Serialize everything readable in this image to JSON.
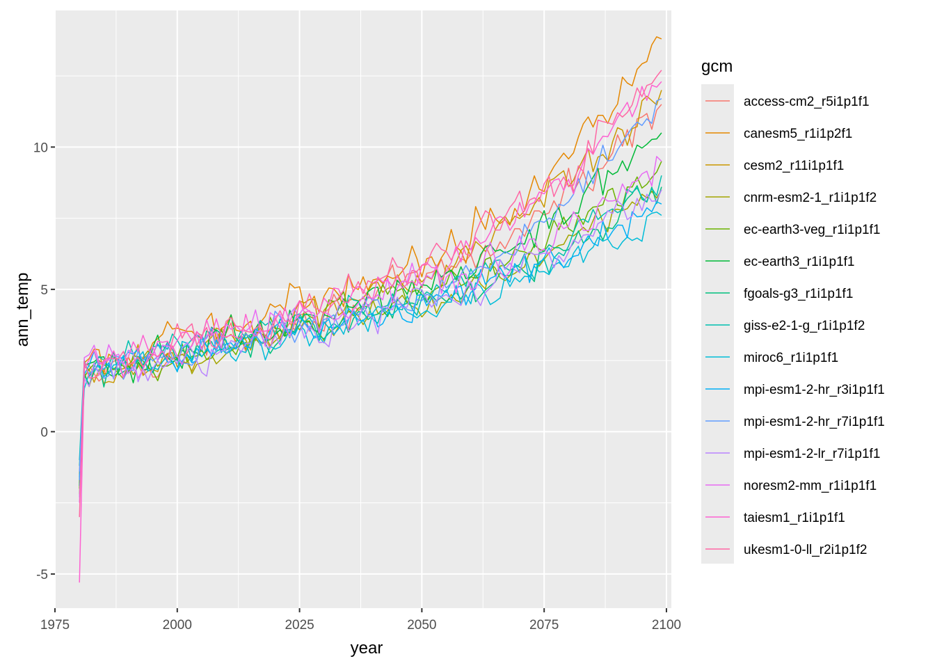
{
  "chart_data": {
    "type": "line",
    "xlabel": "year",
    "ylabel": "ann_temp",
    "xlim": [
      1975,
      2101
    ],
    "ylim": [
      -6.2,
      14.8
    ],
    "x_ticks": [
      {
        "value": 1975,
        "label": "1975"
      },
      {
        "value": 2000,
        "label": "2000"
      },
      {
        "value": 2025,
        "label": "2025"
      },
      {
        "value": 2050,
        "label": "2050"
      },
      {
        "value": 2075,
        "label": "2075"
      },
      {
        "value": 2100,
        "label": "2100"
      }
    ],
    "y_ticks": [
      {
        "value": -5,
        "label": "-5"
      },
      {
        "value": 0,
        "label": "0"
      },
      {
        "value": 5,
        "label": "5"
      },
      {
        "value": 10,
        "label": "10"
      }
    ],
    "grid": true,
    "panel_background": "#ebebeb",
    "legend": {
      "title": "gcm",
      "position": "right"
    },
    "years": {
      "start": 1980,
      "end": 2099
    },
    "series": [
      {
        "name": "access-cm2_r5i1p1f1",
        "color": "#F8766D",
        "start": -2.0,
        "level1985": 2.0,
        "level2050": 5.2,
        "level2099": 11.5,
        "noise": 0.55
      },
      {
        "name": "canesm5_r1i1p2f1",
        "color": "#E58700",
        "start": -1.5,
        "level1985": 2.3,
        "level2050": 6.0,
        "level2099": 13.8,
        "noise": 0.6
      },
      {
        "name": "cesm2_r11i1p1f1",
        "color": "#C99800",
        "start": -1.8,
        "level1985": 1.8,
        "level2050": 5.5,
        "level2099": 12.0,
        "noise": 0.6
      },
      {
        "name": "cnrm-esm2-1_r1i1p1f2",
        "color": "#A3A500",
        "start": -2.2,
        "level1985": 1.9,
        "level2050": 4.6,
        "level2099": 8.5,
        "noise": 0.55
      },
      {
        "name": "ec-earth3-veg_r1i1p1f1",
        "color": "#6BB100",
        "start": -2.0,
        "level1985": 2.0,
        "level2050": 5.0,
        "level2099": 9.5,
        "noise": 0.55
      },
      {
        "name": "ec-earth3_r1i1p1f1",
        "color": "#00BA38",
        "start": -1.9,
        "level1985": 2.1,
        "level2050": 5.1,
        "level2099": 10.5,
        "noise": 0.55
      },
      {
        "name": "fgoals-g3_r1i1p1f1",
        "color": "#00BF7D",
        "start": -1.2,
        "level1985": 2.0,
        "level2050": 4.6,
        "level2099": 8.6,
        "noise": 0.5
      },
      {
        "name": "giss-e2-1-g_r1i1p1f2",
        "color": "#00C0AF",
        "start": -1.0,
        "level1985": 2.2,
        "level2050": 4.7,
        "level2099": 9.0,
        "noise": 0.55
      },
      {
        "name": "miroc6_r1i1p1f1",
        "color": "#00BCD8",
        "start": -1.6,
        "level1985": 2.0,
        "level2050": 4.3,
        "level2099": 7.6,
        "noise": 0.5
      },
      {
        "name": "mpi-esm1-2-hr_r3i1p1f1",
        "color": "#00B0F6",
        "start": -1.7,
        "level1985": 2.2,
        "level2050": 4.5,
        "level2099": 8.0,
        "noise": 0.5
      },
      {
        "name": "mpi-esm1-2-hr_r7i1p1f1",
        "color": "#619CFF",
        "start": -1.4,
        "level1985": 2.3,
        "level2050": 4.6,
        "level2099": 11.7,
        "noise": 0.5
      },
      {
        "name": "mpi-esm1-2-lr_r7i1p1f1",
        "color": "#B983FF",
        "start": -2.3,
        "level1985": 2.0,
        "level2050": 4.5,
        "level2099": 8.5,
        "noise": 0.55
      },
      {
        "name": "noresm2-mm_r1i1p1f1",
        "color": "#E76BF3",
        "start": -2.5,
        "level1985": 2.4,
        "level2050": 5.0,
        "level2099": 9.5,
        "noise": 0.6
      },
      {
        "name": "taiesm1_r1i1p1f1",
        "color": "#FD61D1",
        "start": -5.3,
        "level1985": 2.3,
        "level2050": 5.6,
        "level2099": 12.3,
        "noise": 0.6
      },
      {
        "name": "ukesm1-0-ll_r2i1p1f2",
        "color": "#FF67A4",
        "start": -3.0,
        "level1985": 2.2,
        "level2050": 5.8,
        "level2099": 12.7,
        "noise": 0.6
      }
    ]
  }
}
